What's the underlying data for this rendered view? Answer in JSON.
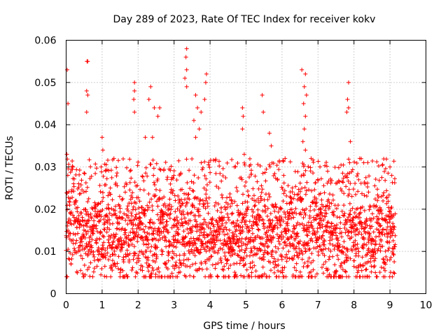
{
  "chart_data": {
    "type": "scatter",
    "title": "Day 289 of 2023, Rate Of TEC Index for receiver kokv",
    "xlabel": "GPS time / hours",
    "ylabel": "ROTI / TECUs",
    "xlim": [
      0,
      10
    ],
    "ylim": [
      0,
      0.06
    ],
    "x_ticks": [
      0,
      1,
      2,
      3,
      4,
      5,
      6,
      7,
      8,
      9,
      10
    ],
    "x_tick_labels": [
      "0",
      "1",
      "2",
      "3",
      "4",
      "5",
      "6",
      "7",
      "8",
      "9",
      "10"
    ],
    "y_ticks": [
      0,
      0.01,
      0.02,
      0.03,
      0.04,
      0.05,
      0.06
    ],
    "y_tick_labels": [
      "0",
      "0.01",
      "0.02",
      "0.03",
      "0.04",
      "0.05",
      "0.06"
    ],
    "grid": true,
    "marker": "+",
    "marker_color": "#ff0000",
    "series": [
      {
        "name": "ROTI",
        "x_range": [
          0.0,
          9.15
        ],
        "typical_band": [
          0.005,
          0.028
        ],
        "outliers": [
          [
            0.03,
            0.053
          ],
          [
            0.05,
            0.045
          ],
          [
            0.02,
            0.033
          ],
          [
            0.03,
            0.004
          ],
          [
            0.6,
            0.055
          ],
          [
            0.58,
            0.055
          ],
          [
            0.57,
            0.048
          ],
          [
            0.6,
            0.047
          ],
          [
            0.57,
            0.043
          ],
          [
            1.0,
            0.037
          ],
          [
            1.02,
            0.034
          ],
          [
            1.9,
            0.05
          ],
          [
            1.9,
            0.048
          ],
          [
            1.88,
            0.046
          ],
          [
            1.9,
            0.043
          ],
          [
            2.35,
            0.049
          ],
          [
            2.3,
            0.046
          ],
          [
            2.45,
            0.044
          ],
          [
            2.6,
            0.044
          ],
          [
            2.55,
            0.042
          ],
          [
            2.2,
            0.037
          ],
          [
            2.4,
            0.037
          ],
          [
            3.35,
            0.058
          ],
          [
            3.33,
            0.056
          ],
          [
            3.35,
            0.053
          ],
          [
            3.3,
            0.051
          ],
          [
            3.35,
            0.049
          ],
          [
            3.6,
            0.047
          ],
          [
            3.65,
            0.044
          ],
          [
            3.55,
            0.041
          ],
          [
            3.9,
            0.052
          ],
          [
            3.88,
            0.05
          ],
          [
            3.85,
            0.046
          ],
          [
            3.75,
            0.043
          ],
          [
            3.7,
            0.039
          ],
          [
            3.6,
            0.037
          ],
          [
            4.9,
            0.044
          ],
          [
            4.92,
            0.042
          ],
          [
            4.9,
            0.039
          ],
          [
            4.95,
            0.033
          ],
          [
            5.45,
            0.047
          ],
          [
            5.48,
            0.043
          ],
          [
            5.7,
            0.035
          ],
          [
            5.65,
            0.038
          ],
          [
            6.55,
            0.053
          ],
          [
            6.65,
            0.052
          ],
          [
            6.62,
            0.049
          ],
          [
            6.68,
            0.047
          ],
          [
            6.6,
            0.045
          ],
          [
            6.65,
            0.042
          ],
          [
            6.62,
            0.039
          ],
          [
            6.58,
            0.036
          ],
          [
            6.65,
            0.034
          ],
          [
            7.85,
            0.05
          ],
          [
            7.82,
            0.046
          ],
          [
            7.85,
            0.044
          ],
          [
            7.8,
            0.043
          ],
          [
            7.9,
            0.036
          ],
          [
            7.88,
            0.031
          ],
          [
            8.05,
            0.004
          ],
          [
            8.1,
            0.005
          ],
          [
            9.0,
            0.03
          ],
          [
            9.05,
            0.028
          ],
          [
            9.1,
            0.005
          ],
          [
            2.85,
            0.004
          ],
          [
            1.5,
            0.005
          ]
        ]
      }
    ]
  }
}
